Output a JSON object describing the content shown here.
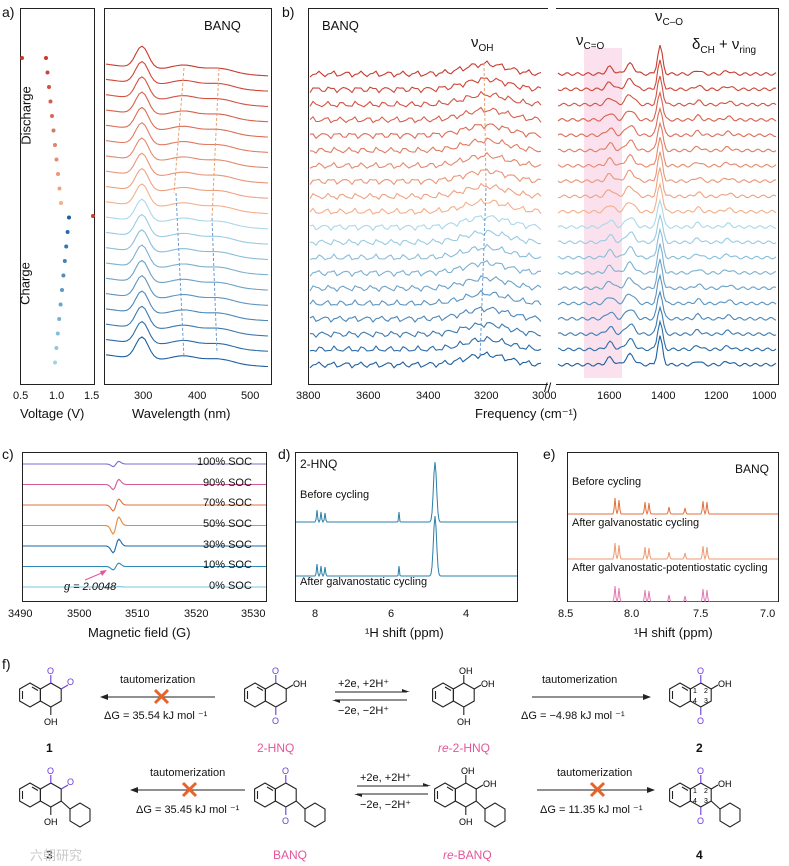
{
  "panel_labels": {
    "a": "a)",
    "b": "b)",
    "c": "c)",
    "d": "d)",
    "e": "e)",
    "f": "f)"
  },
  "panel_a": {
    "voltage_axis": {
      "title": "Voltage (V)",
      "ticks": [
        "0.5",
        "1.0",
        "1.5"
      ]
    },
    "labels": {
      "discharge": "Discharge",
      "charge": "Charge"
    },
    "spectra_tag": "BANQ",
    "wavelength_axis": {
      "title": "Wavelength (nm)",
      "ticks": [
        "300",
        "400",
        "500"
      ]
    }
  },
  "panel_b": {
    "tag": "BANQ",
    "annotations": {
      "v_oh": "ν",
      "v_oh_sub": "OH",
      "v_co_dbl": "ν",
      "v_co_dbl_sub": "C=O",
      "v_co": "ν",
      "v_co_sub": "C–O",
      "delta_ch": "δ",
      "delta_ch_sub": "CH",
      "plus_ring": " + ν",
      "ring_sub": "ring"
    },
    "axis": {
      "title": "Frequency (cm⁻¹)",
      "ticks": [
        "3800",
        "3600",
        "3400",
        "3200",
        "3000",
        "1600",
        "1400",
        "1200",
        "1000"
      ]
    }
  },
  "panel_c": {
    "soc_labels": [
      "100% SOC",
      "90% SOC",
      "70% SOC",
      "50% SOC",
      "30% SOC",
      "10% SOC",
      "0% SOC"
    ],
    "g_label": "g = 2.0048",
    "axis": {
      "title": "Magnetic field (G)",
      "ticks": [
        "3490",
        "3500",
        "3510",
        "3520",
        "3530"
      ]
    }
  },
  "panel_d": {
    "tag": "2-HNQ",
    "before": "Before cycling",
    "after": "After galvanostatic cycling",
    "axis": {
      "title": "¹H shift (ppm)",
      "ticks": [
        "8",
        "6",
        "4"
      ]
    }
  },
  "panel_e": {
    "tag": "BANQ",
    "before": "Before cycling",
    "after1": "After galvanostatic cycling",
    "after2": "After galvanostatic-potentiostatic cycling",
    "axis": {
      "title": "¹H shift (ppm)",
      "ticks": [
        "8.5",
        "8.0",
        "7.5",
        "7.0"
      ]
    }
  },
  "panel_f": {
    "row1": {
      "taut_left": "tautomerization",
      "dg_left": "ΔG = 35.54 kJ mol ⁻¹",
      "redox_fwd": "+2e, +2H⁺",
      "redox_rev": "−2e, −2H⁺",
      "taut_right": "tautomerization",
      "dg_right": "ΔG = −4.98 kJ mol ⁻¹",
      "label_1": "1",
      "label_hnq": "2-HNQ",
      "label_re_prefix": "re",
      "label_re_suffix": "-2-HNQ",
      "label_2": "2"
    },
    "row2": {
      "taut_left": "tautomerization",
      "dg_left": "ΔG = 35.45 kJ mol ⁻¹",
      "redox_fwd": "+2e, +2H⁺",
      "redox_rev": "−2e, −2H⁺",
      "taut_right": "tautomerization",
      "dg_right": "ΔG = 11.35 kJ mol ⁻¹",
      "label_3": "3",
      "label_banq": "BANQ",
      "label_re_prefix": "re",
      "label_re_suffix": "-BANQ",
      "label_4": "4"
    }
  },
  "watermark": "六朝研究",
  "colors": {
    "discharge": "#c93a2e",
    "charge": "#1e6aa8",
    "pink": "#e4569a",
    "orange": "#e8632a",
    "blue_light": "#79c4df"
  }
}
